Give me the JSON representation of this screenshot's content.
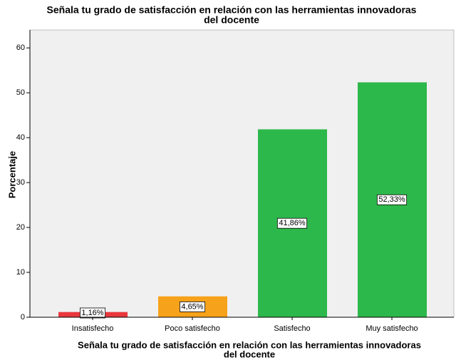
{
  "chart_data": {
    "type": "bar",
    "title": [
      "Señala tu grado de satisfacción en relación con las herramientas innovadoras",
      "del docente"
    ],
    "x_label": [
      "Señala tu grado de satisfacción en relación con las herramientas innovadoras",
      "del docente"
    ],
    "y_label": "Porcentaje",
    "categories": [
      "Insatisfecho",
      "Poco satisfecho",
      "Satisfecho",
      "Muy satisfecho"
    ],
    "values": [
      1.16,
      4.65,
      41.86,
      52.33
    ],
    "value_labels": [
      "1,16%",
      "4,65%",
      "41,86%",
      "52,33%"
    ],
    "colors": [
      "#e8383d",
      "#f7a21b",
      "#2db84b",
      "#2db84b"
    ],
    "ylim": [
      0,
      64
    ],
    "yticks": [
      0,
      10,
      20,
      30,
      40,
      50,
      60
    ]
  }
}
